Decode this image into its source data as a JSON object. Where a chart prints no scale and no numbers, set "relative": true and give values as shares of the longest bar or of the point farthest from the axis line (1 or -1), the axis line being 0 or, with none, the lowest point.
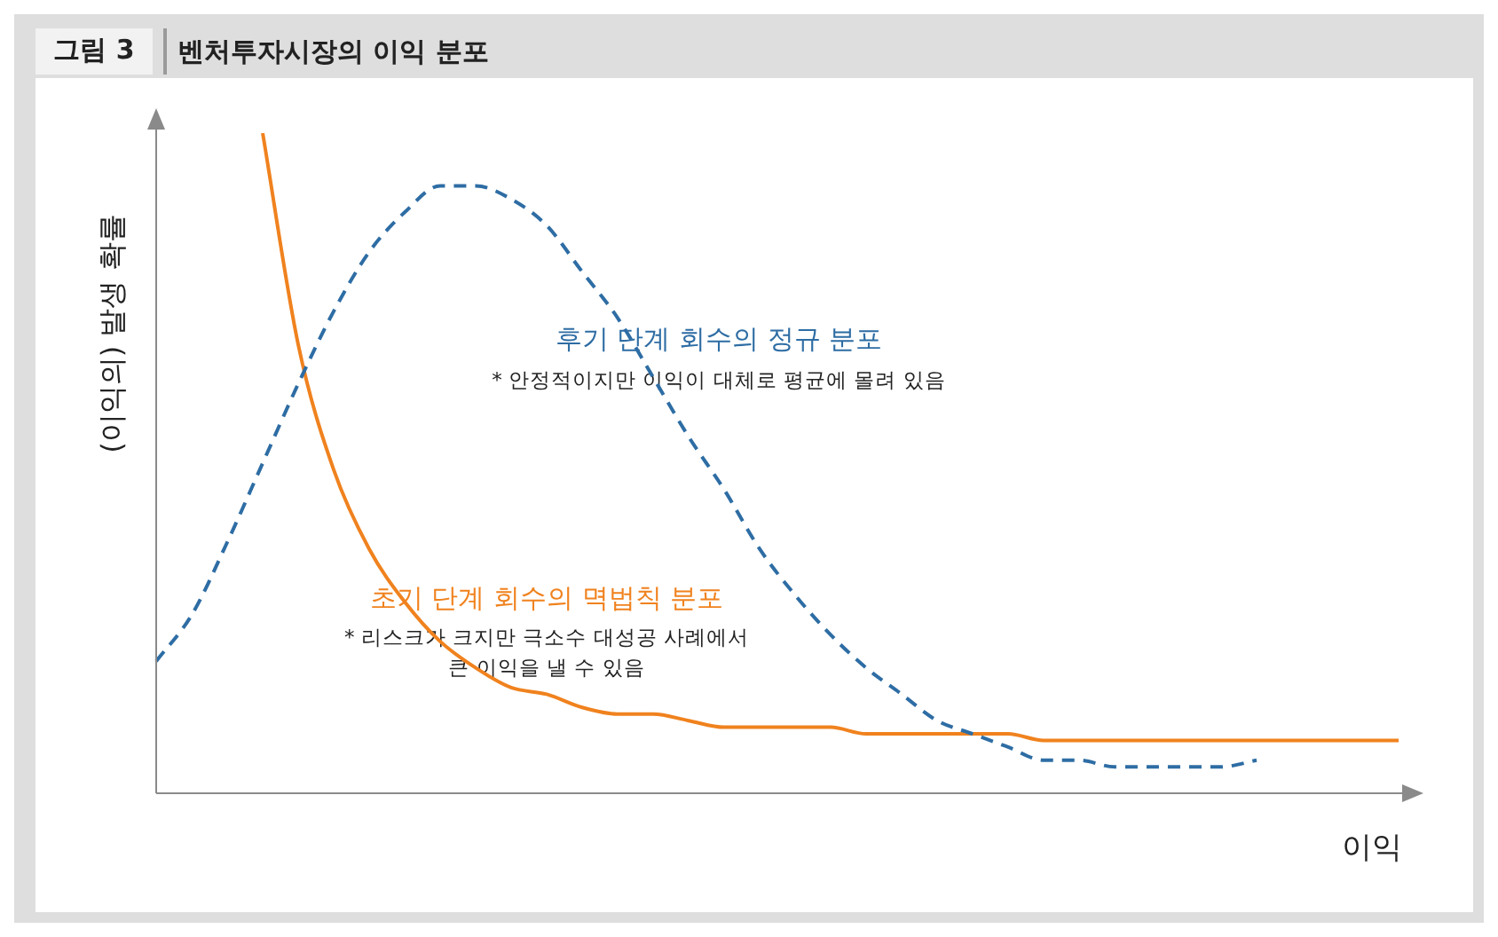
{
  "chart_data": {
    "type": "line",
    "title": "벤처투자시장의 이익 분포",
    "xlabel": "이익",
    "ylabel": "(이익의) 발생 확률",
    "relative": true,
    "marker": "none",
    "annotations": [
      "그림 3",
      "* 안정적이지만 이익이 대체로 평균에 몰려 있음",
      "* 리스크가 크지만 극소수 대성공 사례에서\n큰 이익을 낼 수 있음"
    ],
    "categories": [
      null,
      null,
      null,
      null,
      null,
      null,
      null,
      null,
      null,
      null,
      null,
      null,
      null,
      null,
      null,
      null,
      null,
      null,
      null,
      null,
      null,
      null,
      null,
      null,
      null,
      null,
      null,
      null,
      null,
      null,
      null,
      null,
      null,
      null,
      null,
      null
    ],
    "series": [
      {
        "name": "후기 단계 회수의 정규 분포",
        "color": "#2e6da4",
        "line_style": "dashed",
        "values": [
          0.2,
          0.27,
          0.38,
          0.5,
          0.62,
          0.73,
          0.82,
          0.88,
          0.92,
          0.92,
          0.9,
          0.86,
          0.79,
          0.72,
          0.63,
          0.54,
          0.46,
          0.37,
          0.3,
          0.24,
          0.19,
          0.15,
          0.11,
          0.09,
          0.07,
          0.05,
          0.05,
          0.04,
          0.04,
          0.04,
          0.04,
          0.05,
          null,
          null,
          null,
          null
        ]
      },
      {
        "name": "초기 단계 회수의 멱법칙 분포",
        "color": "#f0821e",
        "line_style": "solid",
        "values": [
          null,
          null,
          null,
          1,
          0.68,
          0.49,
          0.37,
          0.29,
          0.23,
          0.19,
          0.16,
          0.15,
          0.13,
          0.12,
          0.12,
          0.11,
          0.1,
          0.1,
          0.1,
          0.1,
          0.09,
          0.09,
          0.09,
          0.09,
          0.09,
          0.08,
          0.08,
          0.08,
          0.08,
          0.08,
          0.08,
          0.08,
          0.08,
          0.08,
          0.08,
          0.08
        ]
      }
    ]
  }
}
